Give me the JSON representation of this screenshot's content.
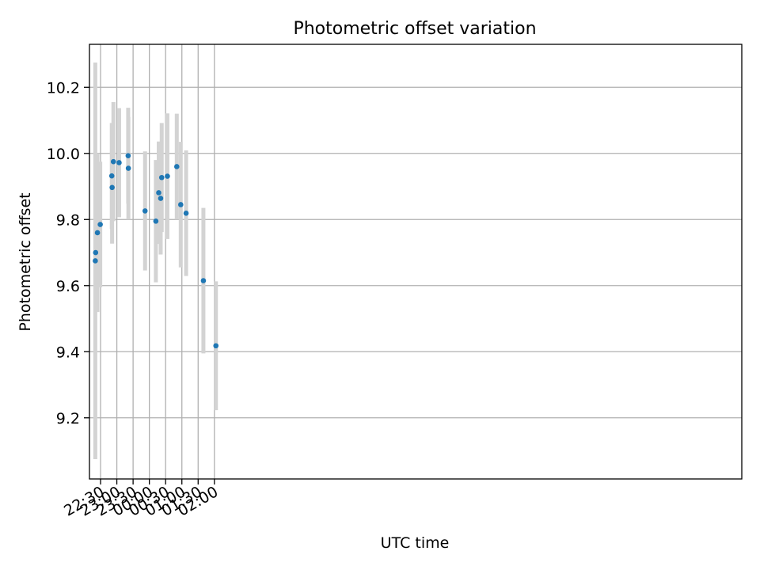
{
  "chart_data": {
    "type": "scatter",
    "title": "Photometric offset variation",
    "xlabel": "UTC time",
    "ylabel": "Photometric offset",
    "xlim_minutes_from_2230": [
      -20.5,
      1183
    ],
    "ylim": [
      9.015,
      10.33
    ],
    "grid": true,
    "colors": {
      "marker": "#1f77b4",
      "errorbar": "#d3d3d3",
      "grid": "#b0b0b0"
    },
    "x_ticks": [
      {
        "label": "22:30",
        "minutes": 0
      },
      {
        "label": "23:00",
        "minutes": 30
      },
      {
        "label": "23:30",
        "minutes": 60
      },
      {
        "label": "00:00",
        "minutes": 90
      },
      {
        "label": "00:30",
        "minutes": 120
      },
      {
        "label": "01:00",
        "minutes": 150
      },
      {
        "label": "01:30",
        "minutes": 180
      },
      {
        "label": "02:00",
        "minutes": 210
      }
    ],
    "y_ticks": [
      9.2,
      9.4,
      9.6,
      9.8,
      10.0,
      10.2
    ],
    "points": [
      {
        "time": "22:20:18",
        "y": 9.675,
        "err": 0.6
      },
      {
        "time": "22:20:54",
        "y": 9.7,
        "err": 0.16
      },
      {
        "time": "22:24:12",
        "y": 9.76,
        "err": 0.24
      },
      {
        "time": "22:29:24",
        "y": 9.785,
        "err": 0.19
      },
      {
        "time": "22:50:42",
        "y": 9.932,
        "err": 0.16
      },
      {
        "time": "22:51:18",
        "y": 9.897,
        "err": 0.17
      },
      {
        "time": "22:53:42",
        "y": 9.975,
        "err": 0.18
      },
      {
        "time": "23:04:12",
        "y": 9.972,
        "err": 0.165
      },
      {
        "time": "23:20:54",
        "y": 9.993,
        "err": 0.145
      },
      {
        "time": "23:21:18",
        "y": 9.955,
        "err": 0.155
      },
      {
        "time": "23:52:06",
        "y": 9.826,
        "err": 0.18
      },
      {
        "time": "00:12:00",
        "y": 9.795,
        "err": 0.185
      },
      {
        "time": "00:17:18",
        "y": 9.881,
        "err": 0.155
      },
      {
        "time": "00:20:54",
        "y": 9.864,
        "err": 0.17
      },
      {
        "time": "00:22:48",
        "y": 9.927,
        "err": 0.165
      },
      {
        "time": "00:33:18",
        "y": 9.931,
        "err": 0.19
      },
      {
        "time": "00:50:36",
        "y": 9.96,
        "err": 0.16
      },
      {
        "time": "00:57:54",
        "y": 9.845,
        "err": 0.19
      },
      {
        "time": "01:07:48",
        "y": 9.819,
        "err": 0.19
      },
      {
        "time": "01:39:42",
        "y": 9.615,
        "err": 0.22
      },
      {
        "time": "02:02:48",
        "y": 9.418,
        "err": 0.195
      }
    ]
  }
}
